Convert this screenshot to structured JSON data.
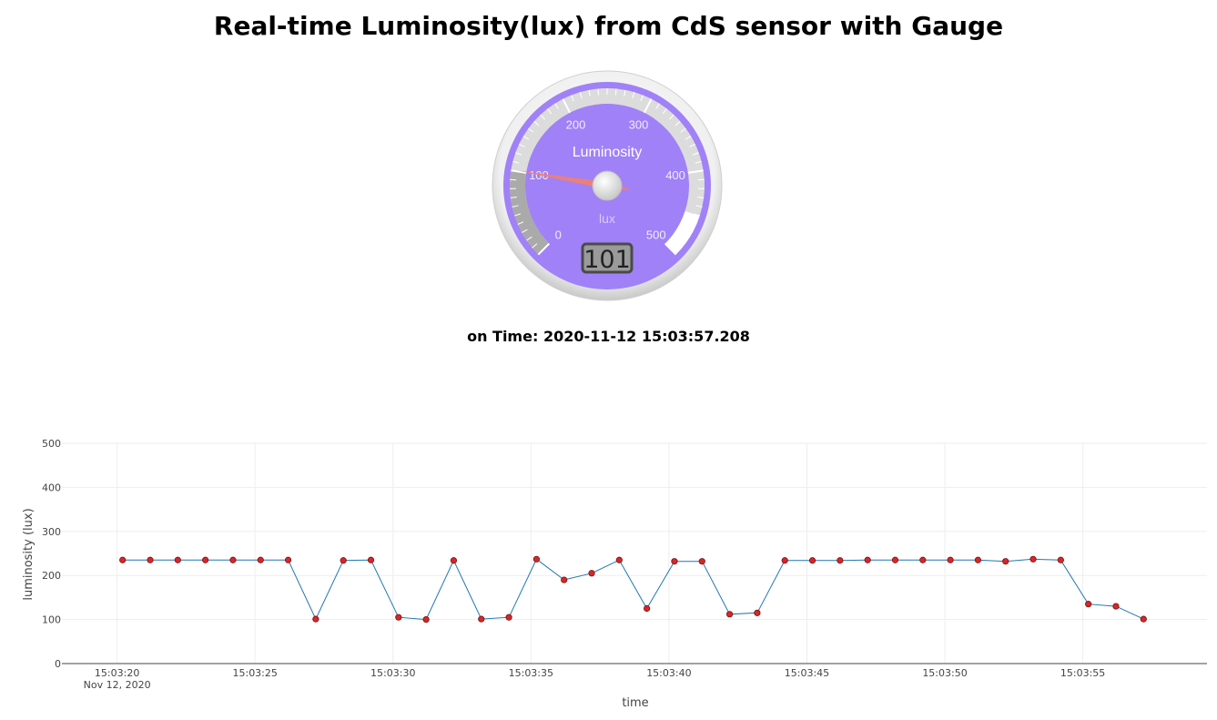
{
  "page": {
    "title": "Real-time Luminosity(lux) from CdS sensor with Gauge",
    "time_prefix": "on Time:",
    "time_value": "2020-11-12 15:03:57.208"
  },
  "gauge": {
    "title": "Luminosity",
    "units": "lux",
    "min": 0,
    "max": 500,
    "value": 101,
    "display": "101",
    "major_ticks": [
      "0",
      "100",
      "200",
      "300",
      "400",
      "500"
    ],
    "colors": {
      "face": "#a081f7",
      "plate": "#dcdcdc",
      "needle": "#f08070",
      "ring": "#f2f2f2",
      "band_low": "#aaaaaa",
      "band_high": "#ffffff"
    }
  },
  "chart_data": {
    "type": "line",
    "xlabel": "time",
    "ylabel": "luminosity (lux)",
    "ylim": [
      0,
      500
    ],
    "y_ticks": [
      "0",
      "100",
      "200",
      "300",
      "400",
      "500"
    ],
    "x_ticks": [
      "15:03:20",
      "15:03:25",
      "15:03:30",
      "15:03:35",
      "15:03:40",
      "15:03:45",
      "15:03:50",
      "15:03:55"
    ],
    "x_date_label": "Nov 12, 2020",
    "xlim": [
      "2020-11-12 15:03:18.0",
      "2020-11-12 15:03:59.5"
    ],
    "grid": true,
    "line_color": "#1f77b4",
    "marker_color": "#d62728",
    "series": [
      {
        "x": [
          "2020-11-12 15:03:20.2",
          "2020-11-12 15:03:21.2",
          "2020-11-12 15:03:22.2",
          "2020-11-12 15:03:23.2",
          "2020-11-12 15:03:24.2",
          "2020-11-12 15:03:25.2",
          "2020-11-12 15:03:26.2",
          "2020-11-12 15:03:27.2",
          "2020-11-12 15:03:28.2",
          "2020-11-12 15:03:29.2",
          "2020-11-12 15:03:30.2",
          "2020-11-12 15:03:31.2",
          "2020-11-12 15:03:32.2",
          "2020-11-12 15:03:33.2",
          "2020-11-12 15:03:34.2",
          "2020-11-12 15:03:35.2",
          "2020-11-12 15:03:36.2",
          "2020-11-12 15:03:37.2",
          "2020-11-12 15:03:38.2",
          "2020-11-12 15:03:39.2",
          "2020-11-12 15:03:40.2",
          "2020-11-12 15:03:41.2",
          "2020-11-12 15:03:42.2",
          "2020-11-12 15:03:43.2",
          "2020-11-12 15:03:44.2",
          "2020-11-12 15:03:45.2",
          "2020-11-12 15:03:46.2",
          "2020-11-12 15:03:47.2",
          "2020-11-12 15:03:48.2",
          "2020-11-12 15:03:49.2",
          "2020-11-12 15:03:50.2",
          "2020-11-12 15:03:51.2",
          "2020-11-12 15:03:52.2",
          "2020-11-12 15:03:53.2",
          "2020-11-12 15:03:54.2",
          "2020-11-12 15:03:55.2",
          "2020-11-12 15:03:56.2",
          "2020-11-12 15:03:57.2"
        ],
        "y": [
          235,
          235,
          235,
          235,
          235,
          235,
          235,
          101,
          234,
          235,
          105,
          100,
          234,
          101,
          105,
          237,
          190,
          205,
          235,
          125,
          232,
          232,
          112,
          115,
          234,
          234,
          234,
          235,
          235,
          235,
          235,
          235,
          232,
          237,
          235,
          135,
          130,
          101
        ]
      }
    ]
  }
}
